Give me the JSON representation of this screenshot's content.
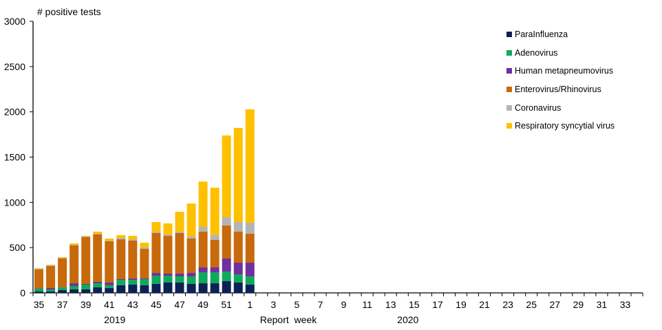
{
  "chart_data": {
    "type": "bar",
    "stacked": true,
    "title": "",
    "ylabel": "# positive tests",
    "xlabel": "Report  week",
    "ylim": [
      0,
      3000
    ],
    "yticks": [
      0,
      500,
      1000,
      1500,
      2000,
      2500,
      3000
    ],
    "grid": false,
    "legend_position": "top-right",
    "year_labels": [
      {
        "label": "2019",
        "under_week_index": 6
      },
      {
        "label": "2020",
        "under_week_index": 31
      }
    ],
    "categories": [
      "35",
      "36",
      "37",
      "38",
      "39",
      "40",
      "41",
      "42",
      "43",
      "44",
      "45",
      "46",
      "47",
      "48",
      "49",
      "50",
      "51",
      "52",
      "1",
      "2",
      "3",
      "4",
      "5",
      "6",
      "7",
      "8",
      "9",
      "10",
      "11",
      "12",
      "13",
      "14",
      "15",
      "16",
      "17",
      "18",
      "19",
      "20",
      "21",
      "22",
      "23",
      "24",
      "25",
      "26",
      "27",
      "28",
      "29",
      "30",
      "31",
      "32",
      "33",
      "34"
    ],
    "tick_labels": [
      "35",
      "37",
      "39",
      "41",
      "43",
      "45",
      "47",
      "49",
      "51",
      "1",
      "3",
      "5",
      "7",
      "9",
      "11",
      "13",
      "15",
      "17",
      "19",
      "21",
      "23",
      "25",
      "27",
      "29",
      "31",
      "33"
    ],
    "series": [
      {
        "name": "ParaInfluenza",
        "color": "#0b2256",
        "values": [
          15,
          15,
          30,
          38,
          38,
          61,
          53,
          84,
          91,
          84,
          99,
          114,
          114,
          99,
          106,
          106,
          129,
          114,
          91
        ]
      },
      {
        "name": "Adenovirus",
        "color": "#10a95a",
        "values": [
          31,
          23,
          31,
          38,
          53,
          45,
          31,
          60,
          53,
          68,
          91,
          76,
          68,
          83,
          122,
          122,
          106,
          91,
          91
        ]
      },
      {
        "name": "Human metapneumovirus",
        "color": "#7030a0",
        "values": [
          4,
          15,
          2,
          30,
          8,
          16,
          30,
          8,
          16,
          8,
          30,
          23,
          31,
          38,
          53,
          53,
          145,
          129,
          152
        ]
      },
      {
        "name": "Enterovirus/Rhinovirus",
        "color": "#c8690b",
        "values": [
          208,
          243,
          317,
          418,
          516,
          524,
          456,
          440,
          417,
          326,
          441,
          417,
          448,
          380,
          395,
          304,
          364,
          342,
          319
        ]
      },
      {
        "name": "Coronavirus",
        "color": "#b4b4b4",
        "values": [
          8,
          8,
          7,
          8,
          8,
          7,
          7,
          16,
          15,
          15,
          15,
          16,
          15,
          23,
          53,
          53,
          91,
          106,
          122
        ]
      },
      {
        "name": "Respiratory syncytial virus",
        "color": "#ffc000",
        "values": [
          7,
          7,
          8,
          15,
          7,
          23,
          23,
          30,
          38,
          53,
          106,
          121,
          220,
          364,
          501,
          524,
          904,
          1040,
          1253
        ]
      }
    ]
  }
}
